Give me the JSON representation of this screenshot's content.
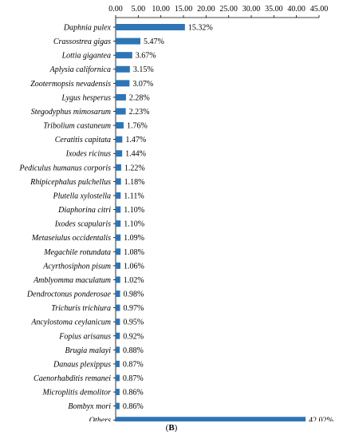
{
  "chart_data": {
    "type": "bar",
    "orientation": "horizontal",
    "x_ticks": [
      "0.00",
      "5.00",
      "10.00",
      "15.00",
      "20.00",
      "25.00",
      "30.00",
      "35.00",
      "40.00",
      "45.00"
    ],
    "xlim": [
      0,
      45
    ],
    "x_axis_position": "top",
    "grid": false,
    "bar_color": "#2E75B6",
    "categories": [
      "Daphnia pulex",
      "Crassostrea gigas",
      "Lottia gigantea",
      "Aplysia californica",
      "Zootermopsis nevadensis",
      "Lygus hesperus",
      "Stegodyphus mimosarum",
      "Tribolium castaneum",
      "Ceratitis capitata",
      "Ixodes ricinus",
      "Pediculus humanus corporis",
      "Rhipicephalus pulchellus",
      "Plutella xylostella",
      "Diaphorina citri",
      "Ixodes scapularis",
      "Metaseiulus occidentalis",
      "Megachile rotundata",
      "Acyrthosiphon pisum",
      "Amblyomma maculatum",
      "Dendroctonus ponderosae",
      "Trichuris trichiura",
      "Ancylostoma ceylanicum",
      "Fopius arisanus",
      "Brugia malayi",
      "Danaus plexippus",
      "Caenorhabditis remanei",
      "Microplitis demolitor",
      "Bombyx mori",
      "Others"
    ],
    "values": [
      15.32,
      5.47,
      3.67,
      3.15,
      3.07,
      2.28,
      2.23,
      1.76,
      1.47,
      1.44,
      1.22,
      1.18,
      1.11,
      1.1,
      1.1,
      1.09,
      1.08,
      1.06,
      1.02,
      0.98,
      0.97,
      0.95,
      0.92,
      0.88,
      0.87,
      0.87,
      0.86,
      0.86,
      42.02
    ],
    "data_labels": [
      "15.32%",
      "5.47%",
      "3.67%",
      "3.15%",
      "3.07%",
      "2.28%",
      "2.23%",
      "1.76%",
      "1.47%",
      "1.44%",
      "1.22%",
      "1.18%",
      "1.11%",
      "1.10%",
      "1.10%",
      "1.09%",
      "1.08%",
      "1.06%",
      "1.02%",
      "0.98%",
      "0.97%",
      "0.95%",
      "0.92%",
      "0.88%",
      "0.87%",
      "0.87%",
      "0.86%",
      "0.86%",
      "42.02%"
    ]
  },
  "caption": {
    "open": "(",
    "letter": "B",
    "close": ")"
  }
}
